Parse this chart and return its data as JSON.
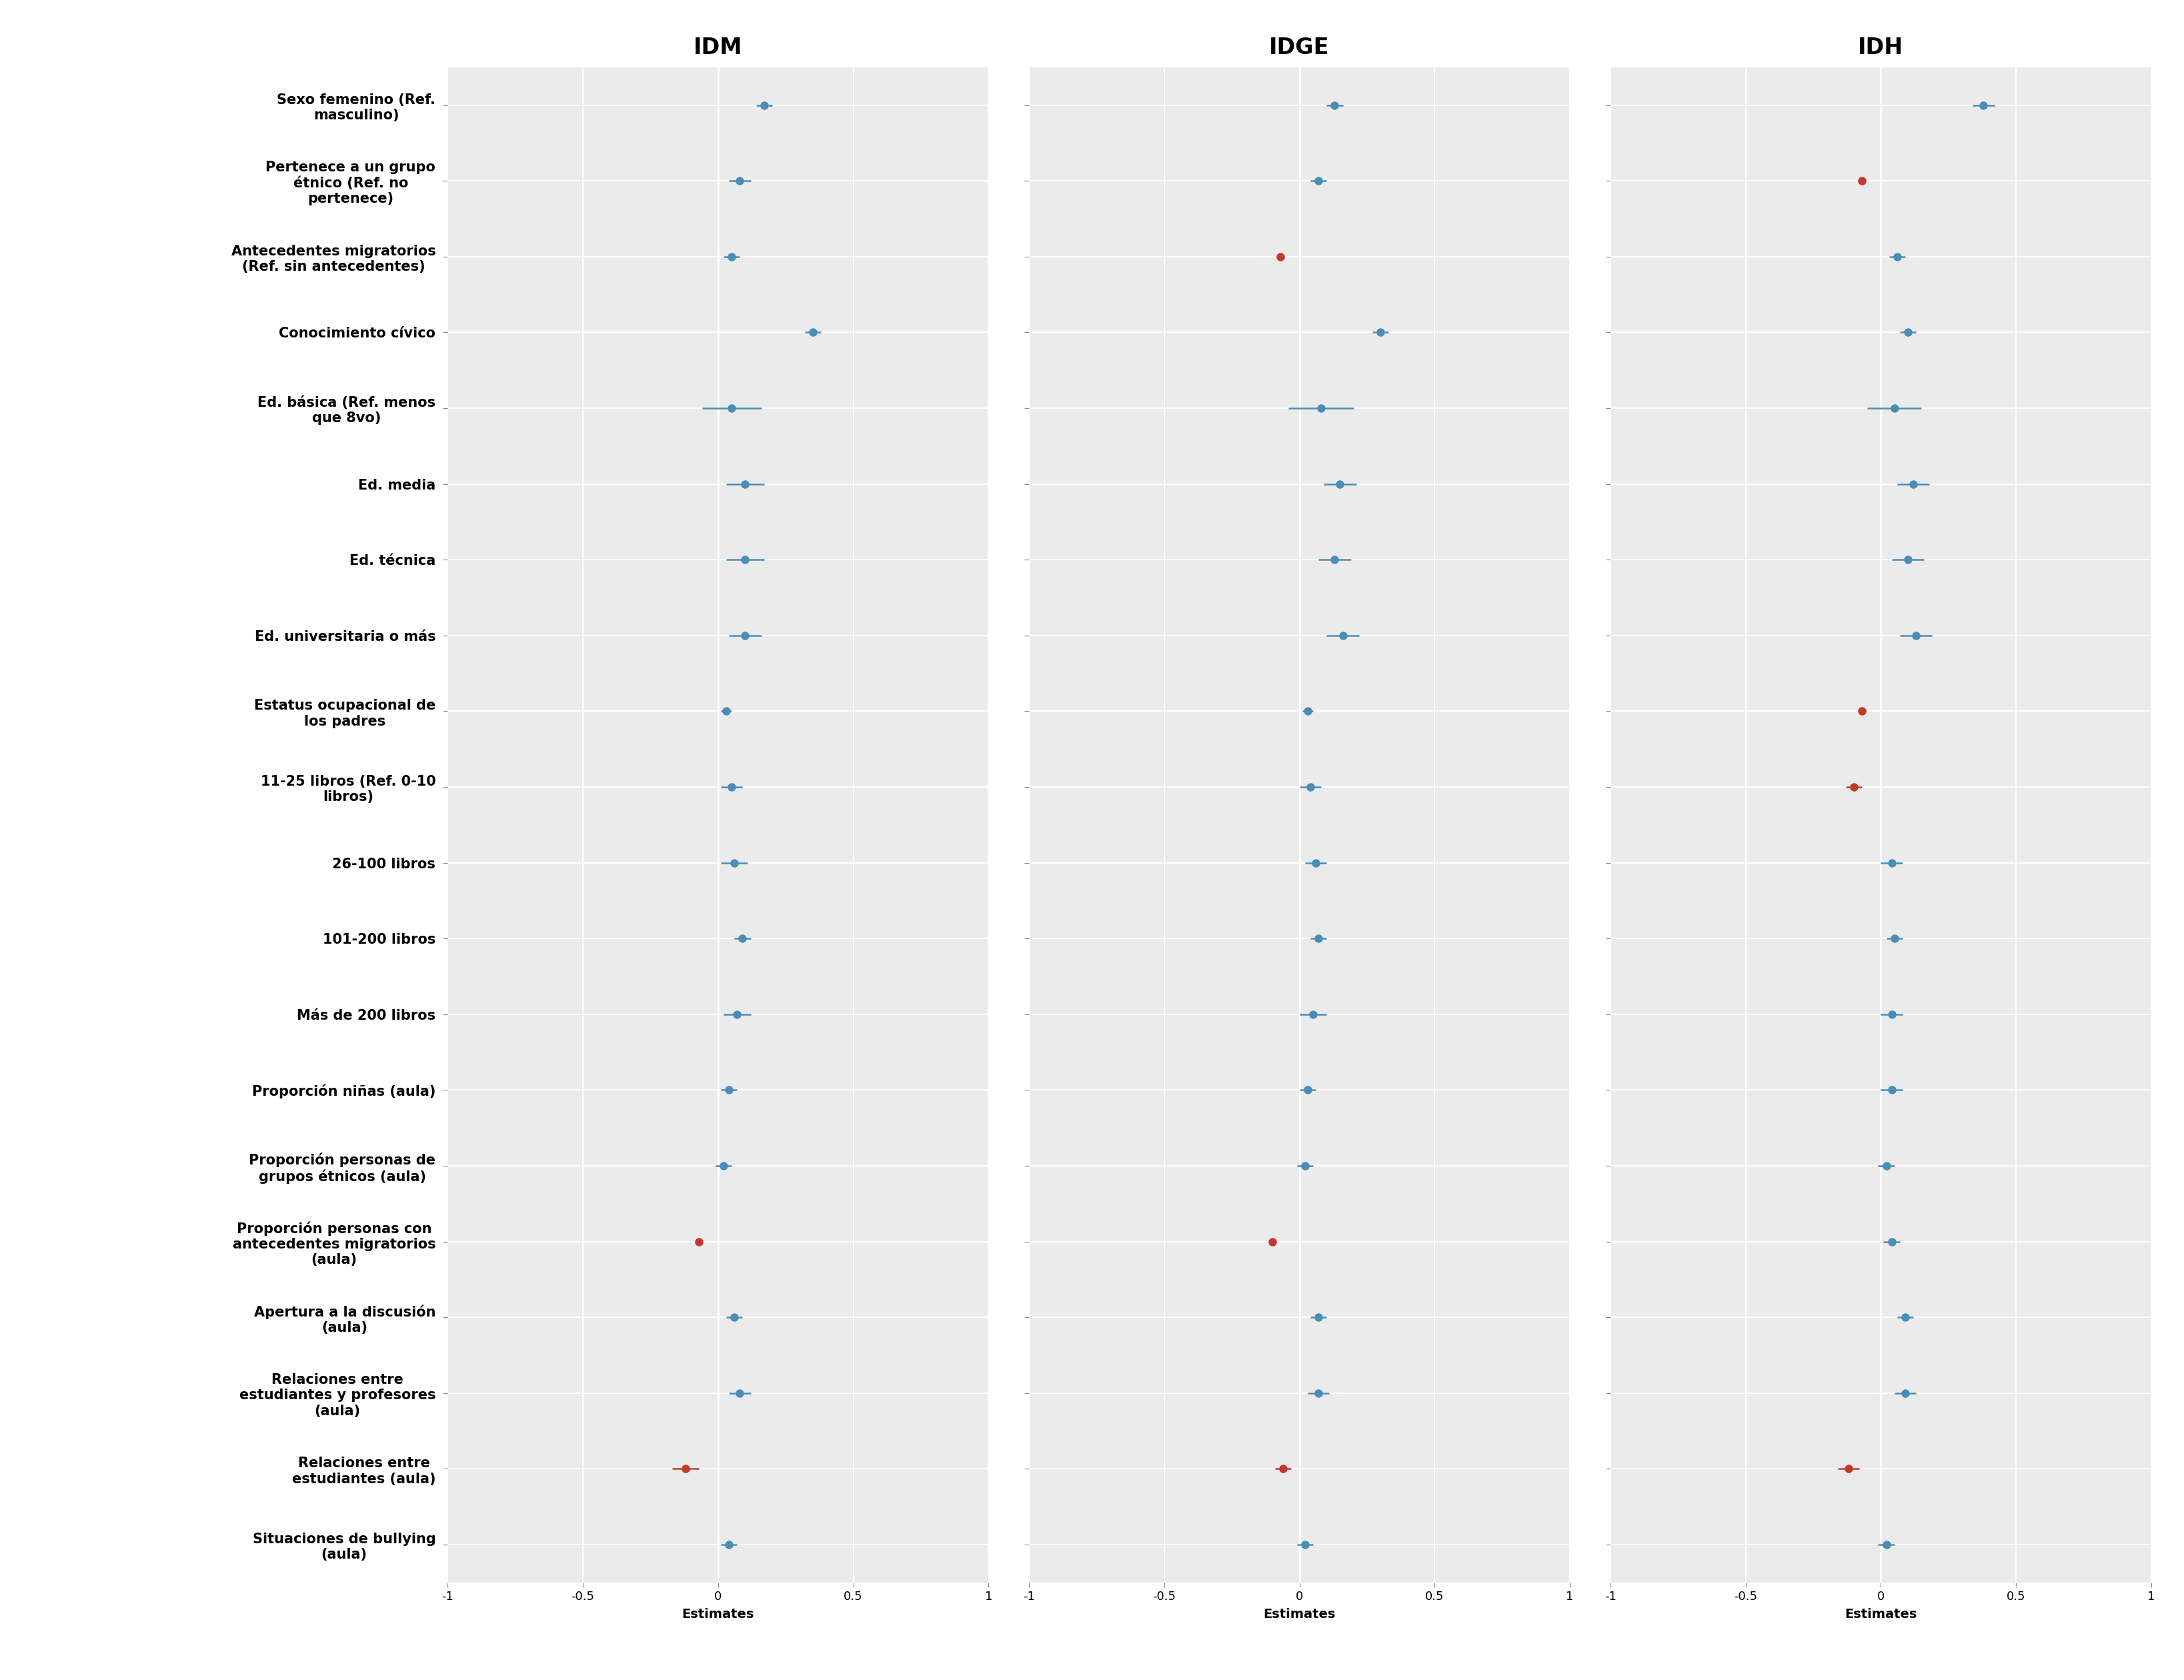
{
  "panels": [
    "IDM",
    "IDGE",
    "IDH"
  ],
  "labels": [
    "Sexo femenino (Ref.\nmasculino)",
    "Pertenece a un grupo\nétnico (Ref. no\npertenece)",
    "Antecedentes migratorios\n(Ref. sin antecedentes)",
    "Conocimiento cívico",
    "Ed. básica (Ref. menos\nque 8vo)",
    "Ed. media",
    "Ed. técnica",
    "Ed. universitaria o más",
    "Estatus ocupacional de\nlos padres",
    "11-25 libros (Ref. 0-10\nlibros)",
    "26-100 libros",
    "101-200 libros",
    "Más de 200 libros",
    "Proporción niñas (aula)",
    "Proporción personas de\ngrupos étnicos (aula)",
    "Proporción personas con\nantecedentes migratorios\n(aula)",
    "Apertura a la discusión\n(aula)",
    "Relaciones entre\nestudiantes y profesores\n(aula)",
    "Relaciones entre\nestudiantes (aula)",
    "Situaciones de bullying\n(aula)"
  ],
  "IDM": {
    "estimates": [
      0.17,
      0.08,
      0.05,
      0.35,
      0.05,
      0.1,
      0.1,
      0.1,
      0.03,
      0.05,
      0.06,
      0.09,
      0.07,
      0.04,
      0.02,
      -0.07,
      0.06,
      0.08,
      -0.12,
      0.04
    ],
    "ci_lo": [
      0.14,
      0.04,
      0.02,
      0.32,
      -0.06,
      0.03,
      0.03,
      0.04,
      0.01,
      0.01,
      0.01,
      0.06,
      0.02,
      0.01,
      -0.01,
      -0.07,
      0.03,
      0.04,
      -0.17,
      0.01
    ],
    "ci_hi": [
      0.2,
      0.12,
      0.08,
      0.38,
      0.16,
      0.17,
      0.17,
      0.16,
      0.05,
      0.09,
      0.11,
      0.12,
      0.12,
      0.07,
      0.05,
      -0.07,
      0.09,
      0.12,
      -0.07,
      0.07
    ],
    "sig": [
      false,
      false,
      false,
      false,
      false,
      false,
      false,
      false,
      false,
      false,
      false,
      false,
      false,
      false,
      false,
      true,
      false,
      false,
      true,
      false
    ]
  },
  "IDGE": {
    "estimates": [
      0.13,
      0.07,
      -0.07,
      0.3,
      0.08,
      0.15,
      0.13,
      0.16,
      0.03,
      0.04,
      0.06,
      0.07,
      0.05,
      0.03,
      0.02,
      -0.1,
      0.07,
      0.07,
      -0.06,
      0.02
    ],
    "ci_lo": [
      0.1,
      0.04,
      -0.07,
      0.27,
      -0.04,
      0.09,
      0.07,
      0.1,
      0.01,
      0.0,
      0.02,
      0.04,
      0.0,
      0.0,
      -0.01,
      -0.1,
      0.04,
      0.03,
      -0.09,
      -0.01
    ],
    "ci_hi": [
      0.16,
      0.1,
      -0.07,
      0.33,
      0.2,
      0.21,
      0.19,
      0.22,
      0.05,
      0.08,
      0.1,
      0.1,
      0.1,
      0.06,
      0.05,
      -0.1,
      0.1,
      0.11,
      -0.03,
      0.05
    ],
    "sig": [
      false,
      false,
      true,
      false,
      false,
      false,
      false,
      false,
      false,
      false,
      false,
      false,
      false,
      false,
      false,
      true,
      false,
      false,
      true,
      false
    ]
  },
  "IDH": {
    "estimates": [
      0.38,
      -0.07,
      0.06,
      0.1,
      0.05,
      0.12,
      0.1,
      0.13,
      -0.07,
      -0.1,
      0.04,
      0.05,
      0.04,
      0.04,
      0.02,
      0.04,
      0.09,
      0.09,
      -0.12,
      0.02
    ],
    "ci_lo": [
      0.34,
      -0.07,
      0.03,
      0.07,
      -0.05,
      0.06,
      0.04,
      0.07,
      -0.07,
      -0.13,
      0.0,
      0.02,
      0.0,
      0.0,
      -0.01,
      0.01,
      0.06,
      0.05,
      -0.16,
      -0.01
    ],
    "ci_hi": [
      0.42,
      -0.07,
      0.09,
      0.13,
      0.15,
      0.18,
      0.16,
      0.19,
      -0.07,
      -0.07,
      0.08,
      0.08,
      0.08,
      0.08,
      0.05,
      0.07,
      0.12,
      0.13,
      -0.08,
      0.05
    ],
    "sig": [
      false,
      true,
      false,
      false,
      false,
      false,
      false,
      false,
      true,
      true,
      false,
      false,
      false,
      false,
      false,
      false,
      false,
      false,
      true,
      false
    ]
  },
  "xlim": [
    -1,
    1
  ],
  "xticks": [
    -1,
    -0.5,
    0,
    0.5,
    1
  ],
  "xtick_labels": [
    "-1",
    "-0.5",
    "0",
    "0.5",
    "1"
  ],
  "xlabel": "Estimates",
  "bg_color": "#EBEBEB",
  "blue_color": "#4A8DB7",
  "red_color": "#C0392B",
  "title_fontsize": 24,
  "label_fontsize": 15,
  "tick_fontsize": 13,
  "xlabel_fontsize": 14
}
